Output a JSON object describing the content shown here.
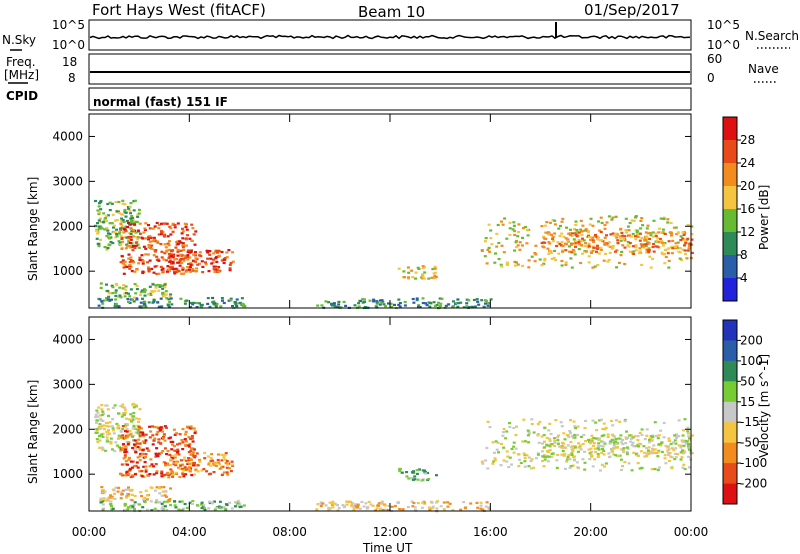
{
  "header": {
    "station": "Fort Hays West (fitACF)",
    "beam": "Beam 10",
    "date": "01/Sep/2017"
  },
  "top_panels": {
    "noise": {
      "left_label": "N.Sky",
      "right_label": "N.Search",
      "left_ticks": [
        "10^5",
        "10^0"
      ],
      "right_ticks": [
        "10^5",
        "10^0"
      ]
    },
    "freq": {
      "left_label_1": "Freq.",
      "left_label_2": "[MHz]",
      "right_label": "Nave",
      "left_ticks": [
        "18",
        "8"
      ],
      "right_ticks": [
        "60",
        "0"
      ]
    },
    "cpid": {
      "label": "CPID",
      "text": "normal (fast) 151 IF"
    }
  },
  "chart_data": [
    {
      "type": "heatmap",
      "name": "power",
      "ylabel": "Slant Range [km]",
      "xlabel": "Time UT",
      "x_tick_labels": [
        "00:00",
        "04:00",
        "08:00",
        "12:00",
        "16:00",
        "20:00",
        "00:00"
      ],
      "x_hours": [
        0,
        4,
        8,
        12,
        16,
        20,
        24
      ],
      "y_ticks": [
        1000,
        2000,
        3000,
        4000
      ],
      "ylim": [
        180,
        4500
      ],
      "xlim_hours": [
        0,
        24
      ],
      "colorbar": {
        "label": "Power [dB]",
        "ticks": [
          "4",
          "8",
          "12",
          "16",
          "20",
          "24",
          "28"
        ],
        "colors": [
          "#2222dd",
          "#2b5ea8",
          "#2e8b57",
          "#66bb33",
          "#f5c542",
          "#f28c1e",
          "#e84a1a",
          "#dd1111"
        ]
      },
      "echo_regions": [
        {
          "t0": 0.3,
          "t1": 6.2,
          "r0": 200,
          "r1": 430,
          "level": 2
        },
        {
          "t0": 0.4,
          "t1": 3.2,
          "r0": 430,
          "r1": 750,
          "level": 3
        },
        {
          "t0": 0.2,
          "t1": 2.0,
          "r0": 1500,
          "r1": 2600,
          "level": 3
        },
        {
          "t0": 1.2,
          "t1": 4.2,
          "r0": 950,
          "r1": 2100,
          "level": 6
        },
        {
          "t0": 3.0,
          "t1": 5.7,
          "r0": 1000,
          "r1": 1500,
          "level": 6
        },
        {
          "t0": 9.0,
          "t1": 16.0,
          "r0": 200,
          "r1": 420,
          "level": 2
        },
        {
          "t0": 12.3,
          "t1": 13.8,
          "r0": 850,
          "r1": 1150,
          "level": 4
        },
        {
          "t0": 15.6,
          "t1": 24.0,
          "r0": 1100,
          "r1": 2250,
          "level": 4
        },
        {
          "t0": 18.0,
          "t1": 24.0,
          "r0": 1400,
          "r1": 1900,
          "level": 5
        }
      ]
    },
    {
      "type": "heatmap",
      "name": "velocity",
      "ylabel": "Slant Range [km]",
      "xlabel": "Time UT",
      "x_tick_labels": [
        "00:00",
        "04:00",
        "08:00",
        "12:00",
        "16:00",
        "20:00",
        "00:00"
      ],
      "x_hours": [
        0,
        4,
        8,
        12,
        16,
        20,
        24
      ],
      "y_ticks": [
        1000,
        2000,
        3000,
        4000
      ],
      "ylim": [
        180,
        4500
      ],
      "xlim_hours": [
        0,
        24
      ],
      "colorbar": {
        "label": "Velocity [m s^-1]",
        "ticks": [
          "200",
          "100",
          "50",
          "15",
          "-15",
          "-50",
          "-100",
          "-200"
        ],
        "colors": [
          "#2233bb",
          "#2b5ea8",
          "#2e8b57",
          "#77cc33",
          "#c8c8c8",
          "#f5c542",
          "#f28c1e",
          "#e84a1a",
          "#dd1111"
        ]
      },
      "echo_regions": [
        {
          "t0": 0.3,
          "t1": 6.2,
          "r0": 200,
          "r1": 430,
          "level": 3
        },
        {
          "t0": 0.4,
          "t1": 3.2,
          "r0": 430,
          "r1": 750,
          "level": 5
        },
        {
          "t0": 0.2,
          "t1": 2.0,
          "r0": 1500,
          "r1": 2600,
          "level": 4
        },
        {
          "t0": 1.2,
          "t1": 4.2,
          "r0": 950,
          "r1": 2100,
          "level": 7
        },
        {
          "t0": 3.0,
          "t1": 5.7,
          "r0": 1000,
          "r1": 1500,
          "level": 6
        },
        {
          "t0": 9.0,
          "t1": 16.0,
          "r0": 200,
          "r1": 420,
          "level": 5
        },
        {
          "t0": 12.3,
          "t1": 13.8,
          "r0": 850,
          "r1": 1150,
          "level": 3
        },
        {
          "t0": 15.6,
          "t1": 24.0,
          "r0": 1100,
          "r1": 2250,
          "level": 4
        },
        {
          "t0": 18.0,
          "t1": 24.0,
          "r0": 1400,
          "r1": 1900,
          "level": 4
        }
      ]
    }
  ]
}
